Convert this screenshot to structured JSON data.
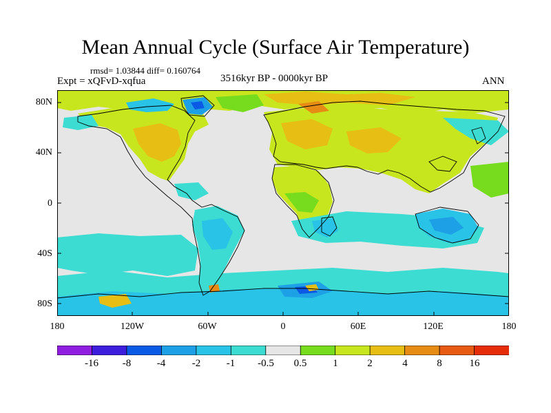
{
  "title": "Mean Annual Cycle (Surface Air Temperature)",
  "stats": "rmsd= 1.03844 diff= 0.160764",
  "experiment": "Expt = xQFvD-xqfua",
  "period": "3516kyr BP - 0000kyr BP",
  "season": "ANN",
  "lat_labels": [
    "80N",
    "40N",
    "0",
    "40S",
    "80S"
  ],
  "lon_labels": [
    "180",
    "120W",
    "60W",
    "0",
    "60E",
    "120E",
    "180"
  ],
  "colorbar": {
    "labels": [
      "-16",
      "-8",
      "-4",
      "-2",
      "-1",
      "-0.5",
      "0.5",
      "1",
      "2",
      "4",
      "8",
      "16"
    ],
    "colors": [
      "#8f1ee0",
      "#3c1edc",
      "#0a5ae6",
      "#1ea0e6",
      "#28c3e6",
      "#3cdcd2",
      "#e6e6e6",
      "#78dc1e",
      "#c8e61e",
      "#e6be14",
      "#e68c14",
      "#e65a14",
      "#e62d0a"
    ]
  },
  "palette": {
    "background": "#e6e6e6",
    "cool_cyan": "#3cdcd2",
    "cool_blue": "#28c3e6",
    "cold": "#1ea0e6",
    "colder": "#0a5ae6",
    "coldest": "#3c1edc",
    "warm_green": "#78dc1e",
    "warm_yellow": "#c8e61e",
    "warm_gold": "#e6be14",
    "warm_orange": "#e68c14",
    "hot": "#e65a14"
  }
}
